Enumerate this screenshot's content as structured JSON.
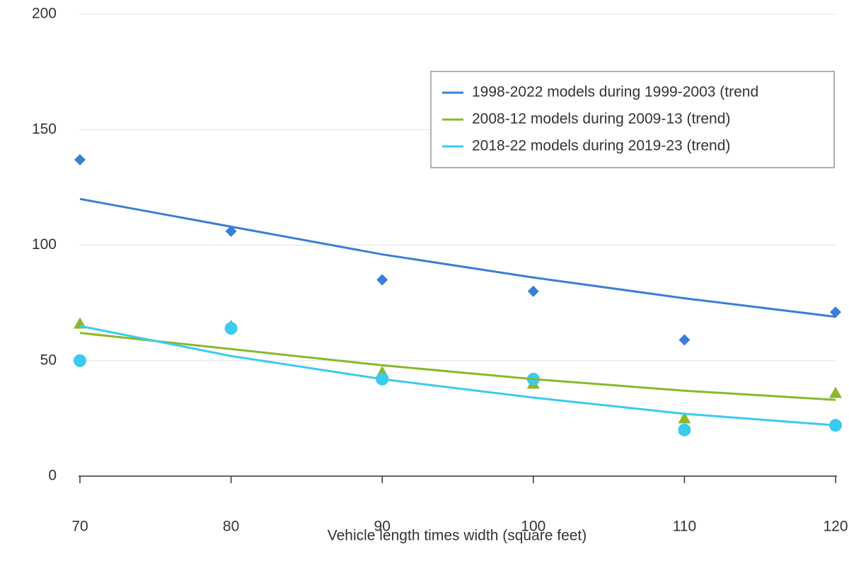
{
  "chart_data": {
    "type": "scatter",
    "x_label": "Vehicle length times width (square feet)",
    "xlim": [
      70,
      120
    ],
    "xticks": [
      70,
      80,
      90,
      100,
      110,
      120
    ],
    "ylim": [
      0,
      200
    ],
    "yticks": [
      0,
      50,
      100,
      150,
      200
    ],
    "grid": true,
    "legend": "upper right",
    "series": [
      {
        "mode": "markers",
        "marker": "diamond",
        "color": "#3a7fd5",
        "x": [
          70,
          80,
          90,
          100,
          110,
          120
        ],
        "values": [
          137,
          106,
          85,
          80,
          59,
          71
        ]
      },
      {
        "mode": "markers",
        "marker": "triangle",
        "color": "#8ab82a",
        "x": [
          70,
          80,
          90,
          100,
          110,
          120
        ],
        "values": [
          66,
          65,
          45,
          40,
          25,
          36
        ]
      },
      {
        "mode": "markers",
        "marker": "circle",
        "color": "#3bcbee",
        "x": [
          70,
          80,
          90,
          100,
          110,
          120
        ],
        "values": [
          50,
          64,
          42,
          42,
          20,
          22
        ]
      },
      {
        "mode": "line",
        "name": "1998-2022 models during 1999-2003 (trend",
        "color": "#3a7fd5",
        "x": [
          70,
          80,
          90,
          100,
          110,
          120
        ],
        "values": [
          120,
          108,
          96,
          86,
          77,
          69
        ]
      },
      {
        "mode": "line",
        "name": "2008-12 models during 2009-13 (trend)",
        "color": "#8ab82a",
        "x": [
          70,
          80,
          90,
          100,
          110,
          120
        ],
        "values": [
          62,
          55,
          48,
          42,
          37,
          33
        ]
      },
      {
        "mode": "line",
        "name": "2018-22 models during 2019-23 (trend)",
        "color": "#3bcbee",
        "x": [
          70,
          80,
          90,
          100,
          110,
          120
        ],
        "values": [
          65,
          52,
          42,
          34,
          27,
          22
        ]
      }
    ]
  }
}
